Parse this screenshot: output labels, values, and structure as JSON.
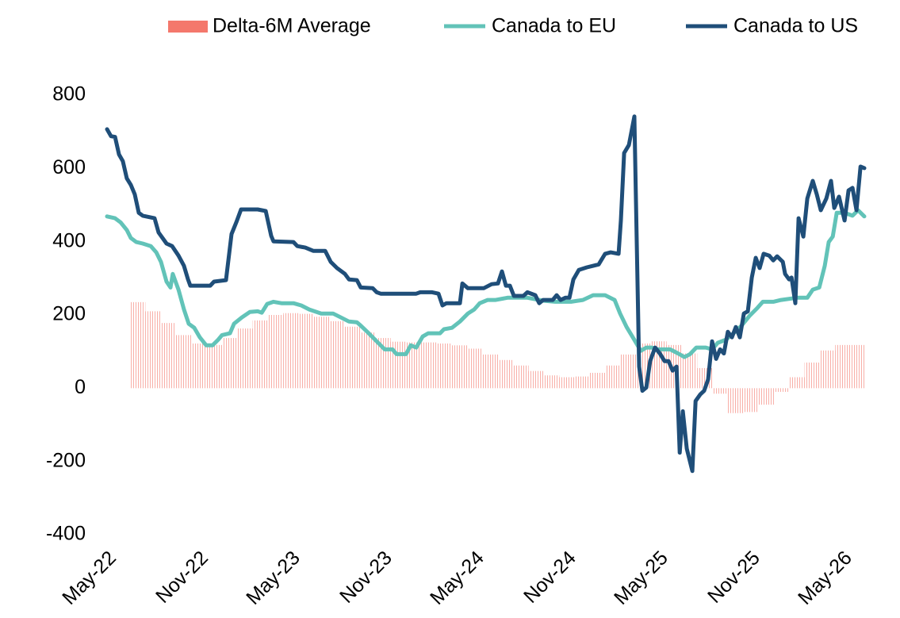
{
  "chart_data": {
    "type": "line",
    "legend": "top",
    "xlim": [
      0,
      49.4
    ],
    "ylim": [
      -400,
      800
    ],
    "yticks": [
      -400,
      -200,
      0,
      200,
      400,
      600,
      800
    ],
    "xticks": [
      {
        "value": 0,
        "label": "May-22"
      },
      {
        "value": 6,
        "label": "Nov-22"
      },
      {
        "value": 12,
        "label": "May-23"
      },
      {
        "value": 18,
        "label": "Nov-23"
      },
      {
        "value": 24,
        "label": "May-24"
      },
      {
        "value": 30,
        "label": "Nov-24"
      },
      {
        "value": 36,
        "label": "May-25"
      },
      {
        "value": 42,
        "label": "Nov-25"
      },
      {
        "value": 48,
        "label": "May-26"
      }
    ],
    "series": [
      {
        "name": "Delta-6M Average",
        "type": "bar",
        "color": "#f4786c",
        "x": [
          2,
          3,
          4,
          5,
          6,
          7,
          8,
          9,
          10,
          11,
          12,
          13,
          14,
          15,
          16,
          17,
          18,
          19,
          20,
          21,
          22,
          23,
          24,
          25,
          26,
          27,
          28,
          29,
          30,
          31,
          32,
          33,
          34,
          35,
          36,
          37,
          38,
          39,
          40,
          41,
          42,
          43,
          44,
          45,
          46,
          47,
          48,
          49
        ],
        "values": [
          235,
          210,
          178,
          145,
          122,
          118,
          137,
          163,
          185,
          200,
          205,
          203,
          195,
          183,
          168,
          152,
          137,
          127,
          125,
          125,
          122,
          117,
          108,
          92,
          77,
          62,
          47,
          35,
          30,
          32,
          42,
          62,
          92,
          122,
          128,
          118,
          95,
          55,
          -15,
          -68,
          -65,
          -45,
          -10,
          30,
          70,
          103,
          118,
          118
        ]
      },
      {
        "name": "Canada to EU",
        "type": "line",
        "color": "#62c3b8",
        "x": [
          0,
          0.52,
          0.88,
          1.29,
          1.55,
          1.91,
          2.33,
          2.85,
          3.21,
          3.52,
          3.88,
          4.14,
          4.29,
          4.66,
          5.02,
          5.33,
          5.69,
          6.05,
          6.47,
          6.88,
          7.24,
          7.5,
          8.02,
          8.28,
          8.79,
          9.31,
          9.83,
          10.09,
          10.45,
          10.86,
          11.38,
          12.16,
          12.67,
          13.19,
          13.97,
          14.74,
          15.26,
          15.78,
          16.3,
          16.55,
          17.07,
          17.59,
          18.11,
          18.62,
          18.88,
          19.5,
          19.81,
          20.17,
          20.59,
          20.95,
          21.72,
          21.98,
          22.5,
          23.02,
          23.54,
          23.95,
          24.31,
          24.83,
          25.35,
          26.12,
          27.42,
          28.45,
          29.23,
          30.27,
          31.04,
          31.71,
          32.49,
          33.11,
          33.47,
          33.89,
          34.4,
          34.82,
          35.18,
          35.54,
          35.96,
          36.73,
          37.25,
          37.67,
          38.03,
          38.44,
          39.06,
          39.47,
          39.84,
          40.35,
          40.87,
          41.39,
          41.9,
          42.42,
          42.78,
          43.46,
          43.97,
          45.01,
          45.68,
          46.04,
          46.46,
          46.82,
          47.08,
          47.34,
          47.6,
          48.11,
          48.63,
          48.99,
          49.4
        ],
        "values": [
          469,
          464,
          453,
          432,
          410,
          399,
          395,
          388,
          371,
          345,
          291,
          275,
          312,
          269,
          215,
          176,
          165,
          139,
          117,
          117,
          132,
          145,
          150,
          176,
          193,
          208,
          210,
          206,
          230,
          236,
          232,
          232,
          226,
          215,
          204,
          204,
          193,
          182,
          180,
          171,
          150,
          128,
          106,
          106,
          93,
          93,
          117,
          111,
          141,
          150,
          150,
          161,
          165,
          182,
          204,
          215,
          232,
          241,
          241,
          247,
          247,
          239,
          236,
          236,
          241,
          254,
          254,
          241,
          204,
          167,
          132,
          102,
          111,
          111,
          106,
          106,
          95,
          85,
          93,
          111,
          111,
          106,
          124,
          132,
          150,
          171,
          197,
          219,
          236,
          236,
          241,
          247,
          247,
          269,
          275,
          334,
          399,
          414,
          479,
          479,
          471,
          486,
          469
        ]
      },
      {
        "name": "Canada to US",
        "type": "line",
        "color": "#1f4e79",
        "x": [
          0,
          0.26,
          0.52,
          0.78,
          1.03,
          1.29,
          1.55,
          1.81,
          2.07,
          2.33,
          3.1,
          3.36,
          3.88,
          4.24,
          4.66,
          5.02,
          5.28,
          5.43,
          6.73,
          6.98,
          7.76,
          8.12,
          8.43,
          8.74,
          9.83,
          10.09,
          10.35,
          10.71,
          10.86,
          12.16,
          12.41,
          12.93,
          13.45,
          14.23,
          14.59,
          15.0,
          15.52,
          15.78,
          16.3,
          16.55,
          17.33,
          17.59,
          17.85,
          20.17,
          20.43,
          21.21,
          21.62,
          21.88,
          22.14,
          23.02,
          23.18,
          23.54,
          24.57,
          25.09,
          25.5,
          25.76,
          26.02,
          26.28,
          26.54,
          27.16,
          27.42,
          27.94,
          28.19,
          28.45,
          29.07,
          29.33,
          29.59,
          29.9,
          30.16,
          30.42,
          30.78,
          31.3,
          31.71,
          32.07,
          32.49,
          32.85,
          33.37,
          33.52,
          33.73,
          34.04,
          34.4,
          34.71,
          34.92,
          35.18,
          35.43,
          35.75,
          36.06,
          36.37,
          36.63,
          36.89,
          37.15,
          37.36,
          37.56,
          37.82,
          38.18,
          38.39,
          38.7,
          38.95,
          39.21,
          39.47,
          39.73,
          39.99,
          40.24,
          40.5,
          40.76,
          41.02,
          41.28,
          41.54,
          41.8,
          42.06,
          42.32,
          42.57,
          42.83,
          43.2,
          43.46,
          43.71,
          44.08,
          44.23,
          44.49,
          44.65,
          44.9,
          45.11,
          45.42,
          45.68,
          46.04,
          46.3,
          46.56,
          46.92,
          47.23,
          47.44,
          47.75,
          48.11,
          48.37,
          48.63,
          48.89,
          49.15,
          49.4
        ],
        "values": [
          707,
          688,
          686,
          638,
          620,
          573,
          555,
          529,
          479,
          471,
          464,
          425,
          395,
          388,
          362,
          334,
          297,
          280,
          280,
          291,
          295,
          421,
          453,
          488,
          488,
          486,
          484,
          416,
          401,
          399,
          388,
          384,
          375,
          375,
          345,
          328,
          312,
          297,
          295,
          275,
          273,
          262,
          258,
          258,
          262,
          262,
          258,
          226,
          232,
          232,
          286,
          273,
          273,
          284,
          286,
          319,
          280,
          280,
          252,
          252,
          262,
          254,
          232,
          241,
          241,
          254,
          241,
          247,
          247,
          297,
          323,
          330,
          334,
          338,
          367,
          371,
          367,
          458,
          642,
          664,
          742,
          59,
          -7,
          2,
          74,
          111,
          95,
          74,
          74,
          48,
          59,
          -176,
          -63,
          -165,
          -226,
          -35,
          -17,
          -7,
          24,
          128,
          80,
          106,
          95,
          154,
          139,
          167,
          139,
          204,
          210,
          302,
          356,
          328,
          367,
          362,
          349,
          360,
          345,
          312,
          297,
          302,
          232,
          464,
          414,
          518,
          566,
          529,
          486,
          518,
          566,
          492,
          523,
          458,
          540,
          547,
          486,
          605,
          601
        ]
      }
    ]
  }
}
